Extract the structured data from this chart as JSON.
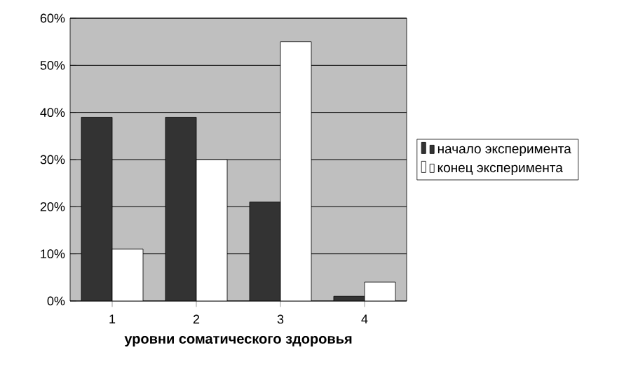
{
  "chart_data": {
    "type": "bar",
    "xlabel": "уровни соматического здоровья",
    "categories": [
      "1",
      "2",
      "3",
      "4"
    ],
    "series": [
      {
        "name": "начало эксперимента",
        "color": "#333333",
        "values": [
          39,
          39,
          21,
          1
        ]
      },
      {
        "name": "конец эксперимента",
        "color": "#ffffff",
        "values": [
          11,
          30,
          55,
          4
        ]
      }
    ],
    "ylim": [
      0,
      60
    ],
    "yticks": [
      {
        "value": 0,
        "label": "0%"
      },
      {
        "value": 10,
        "label": "10%"
      },
      {
        "value": 20,
        "label": "20%"
      },
      {
        "value": 30,
        "label": "30%"
      },
      {
        "value": 40,
        "label": "40%"
      },
      {
        "value": 50,
        "label": "50%"
      },
      {
        "value": 60,
        "label": "60%"
      }
    ],
    "grid": "y",
    "legend": "right"
  }
}
